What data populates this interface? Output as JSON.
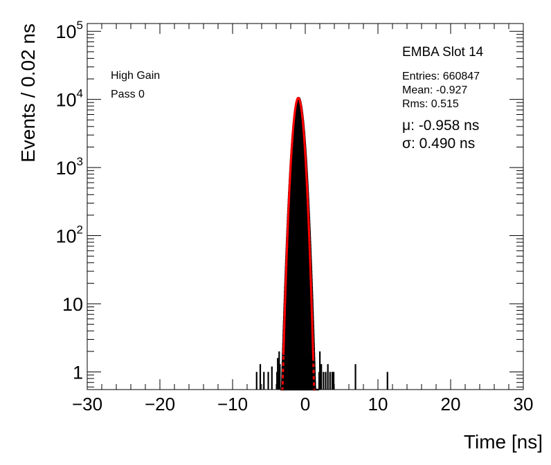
{
  "chart_data": {
    "type": "bar",
    "subtype": "histogram",
    "title": "EMBA Slot 14",
    "xlabel": "Time [ns]",
    "ylabel": "Events / 0.02 ns",
    "xlim": [
      -30,
      30
    ],
    "ylim": [
      0.55,
      130000
    ],
    "yscale": "log",
    "grid": false,
    "legend": "none",
    "xticks": [
      {
        "value": -30,
        "label": "−30"
      },
      {
        "value": -20,
        "label": "−20"
      },
      {
        "value": -10,
        "label": "−10"
      },
      {
        "value": 0,
        "label": "0"
      },
      {
        "value": 10,
        "label": "10"
      },
      {
        "value": 20,
        "label": "20"
      },
      {
        "value": 30,
        "label": "30"
      }
    ],
    "yticks": [
      {
        "value": 1,
        "base": "1",
        "exp": ""
      },
      {
        "value": 10,
        "base": "10",
        "exp": ""
      },
      {
        "value": 100,
        "base": "10",
        "exp": "2"
      },
      {
        "value": 1000,
        "base": "10",
        "exp": "3"
      },
      {
        "value": 10000,
        "base": "10",
        "exp": "4"
      },
      {
        "value": 100000,
        "base": "10",
        "exp": "5"
      }
    ],
    "labels": {
      "gain": "High Gain",
      "pass": "Pass 0"
    },
    "stats": {
      "entries": "Entries: 660847",
      "mean": "Mean: -0.927",
      "rms": "Rms: 0.515"
    },
    "fit": {
      "mu_label": "μ: -0.958 ns",
      "sigma_label": "σ: 0.490 ns",
      "mu": -0.958,
      "sigma": 0.49,
      "peak": 10500,
      "solid_range": [
        -3.0,
        1.1
      ],
      "dashed_range": [
        -3.3,
        1.4
      ],
      "color": "#ff0000"
    },
    "histogram": {
      "color": "#000000",
      "core_mu": -0.93,
      "core_sigma": 0.52,
      "core_peak": 10500,
      "core_range": [
        -3.4,
        1.9
      ],
      "tail_bins": [
        {
          "x": -6.7,
          "y": 1
        },
        {
          "x": -6.2,
          "y": 1.3
        },
        {
          "x": -5.7,
          "y": 1
        },
        {
          "x": -5.1,
          "y": 1
        },
        {
          "x": -4.6,
          "y": 1.2
        },
        {
          "x": -3.9,
          "y": 1
        },
        {
          "x": -3.8,
          "y": 1.6
        },
        {
          "x": -3.7,
          "y": 1
        },
        {
          "x": -3.6,
          "y": 2
        },
        {
          "x": -3.5,
          "y": 1.3
        },
        {
          "x": 1.9,
          "y": 1
        },
        {
          "x": 2.0,
          "y": 2
        },
        {
          "x": 2.1,
          "y": 1
        },
        {
          "x": 2.2,
          "y": 1.3
        },
        {
          "x": 2.5,
          "y": 1
        },
        {
          "x": 2.8,
          "y": 1
        },
        {
          "x": 3.1,
          "y": 1.3
        },
        {
          "x": 3.4,
          "y": 1
        },
        {
          "x": 3.7,
          "y": 1
        },
        {
          "x": 3.9,
          "y": 1
        },
        {
          "x": 6.9,
          "y": 1.3
        },
        {
          "x": 11.3,
          "y": 1
        }
      ]
    }
  }
}
